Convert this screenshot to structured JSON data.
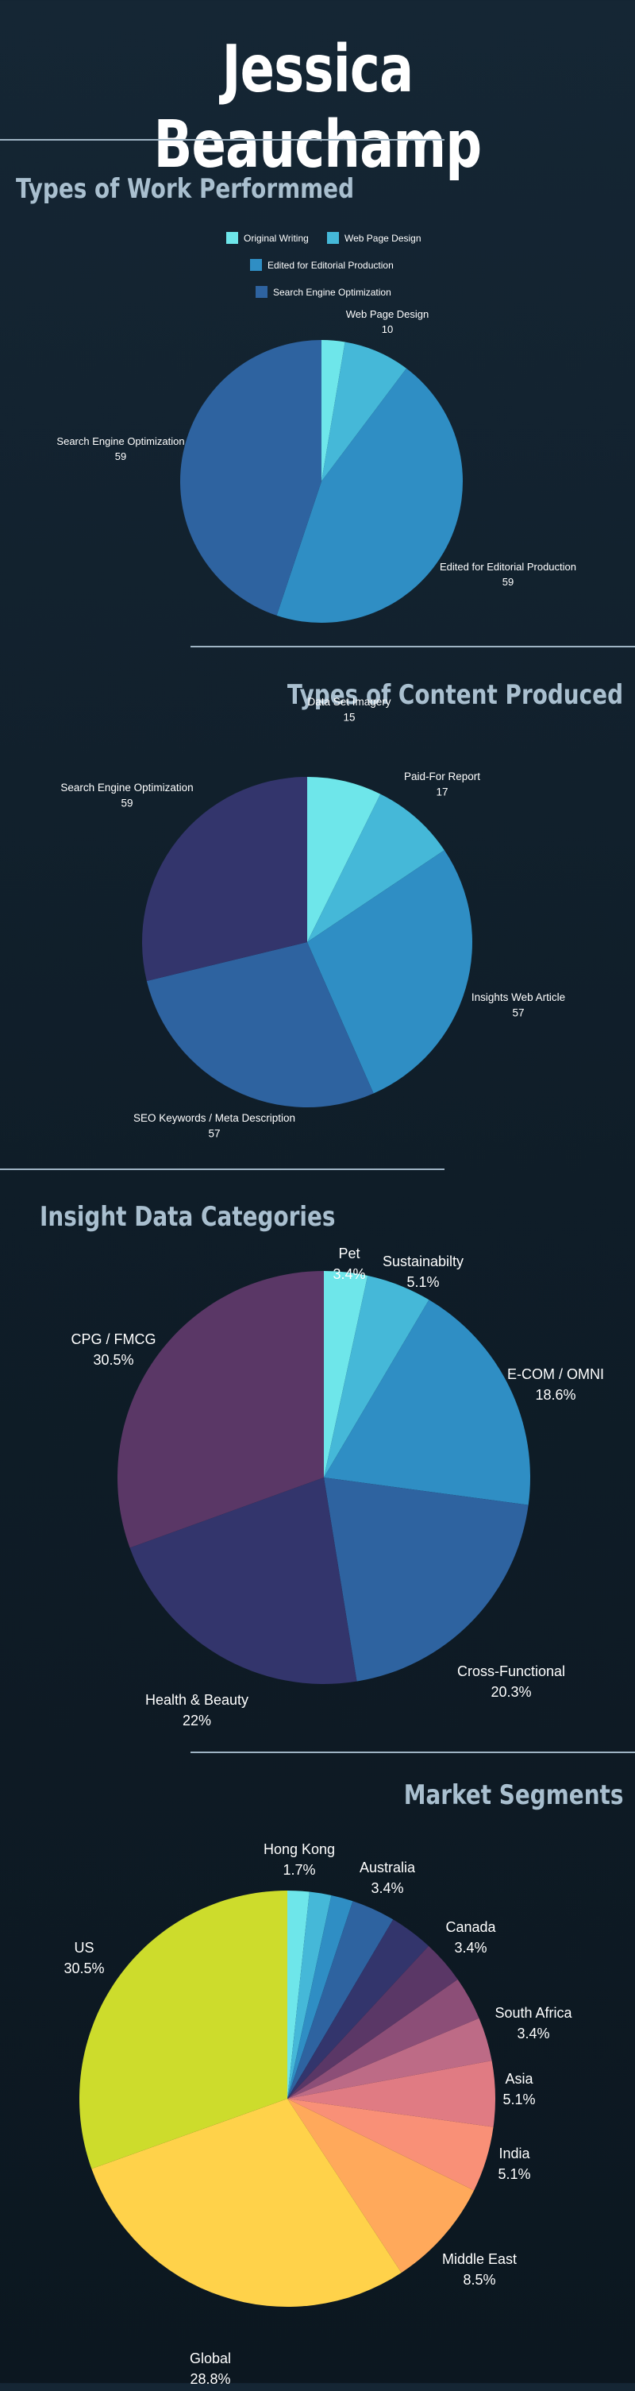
{
  "header": {
    "name": "Jessica Beauchamp"
  },
  "chart_data": [
    {
      "type": "pie",
      "title": "Types of Work Performmed",
      "legend": "top",
      "slices": [
        {
          "label": "Original Writing",
          "value": 3.5,
          "color": "#6ee6ea",
          "value_label": ""
        },
        {
          "label": "Web Page Design",
          "value": 10,
          "color": "#45b8d8",
          "value_label": "10"
        },
        {
          "label": "Edited for Editorial Production",
          "value": 59,
          "color": "#2f8ec4",
          "value_label": "59"
        },
        {
          "label": "Search Engine Optimization",
          "value": 59,
          "color": "#2e63a0",
          "value_label": "59"
        }
      ]
    },
    {
      "type": "pie",
      "title": "Types of Content Produced",
      "slices": [
        {
          "label": "Data Set Imagery",
          "value": 15,
          "color": "#6ee6ea",
          "value_label": "15"
        },
        {
          "label": "Paid-For Report",
          "value": 17,
          "color": "#45b8d8",
          "value_label": "17"
        },
        {
          "label": "Insights Web Article",
          "value": 57,
          "color": "#2f8ec4",
          "value_label": "57"
        },
        {
          "label": "SEO Keywords / Meta Description",
          "value": 57,
          "color": "#2e63a0",
          "value_label": "57"
        },
        {
          "label": "Search Engine Optimization",
          "value": 59,
          "color": "#33356c",
          "value_label": "59"
        }
      ]
    },
    {
      "type": "pie",
      "title": "Insight Data Categories",
      "slices": [
        {
          "label": "Pet",
          "value": 3.4,
          "color": "#6ee6ea",
          "value_label": "3.4%"
        },
        {
          "label": "Sustainabilty",
          "value": 5.1,
          "color": "#45b8d8",
          "value_label": "5.1%"
        },
        {
          "label": "E-COM / OMNI",
          "value": 18.6,
          "color": "#2f8ec4",
          "value_label": "18.6%"
        },
        {
          "label": "Cross-Functional",
          "value": 20.3,
          "color": "#2e63a0",
          "value_label": "20.3%"
        },
        {
          "label": "Health & Beauty",
          "value": 22,
          "color": "#33356c",
          "value_label": "22%"
        },
        {
          "label": "CPG / FMCG",
          "value": 30.5,
          "color": "#5a3766",
          "value_label": "30.5%"
        }
      ]
    },
    {
      "type": "pie",
      "title": "Market Segments",
      "slices": [
        {
          "label": "",
          "value": 1.7,
          "color": "#6ee6ea",
          "value_label": ""
        },
        {
          "label": "Hong Kong",
          "value": 1.7,
          "color": "#45b8d8",
          "value_label": "1.7%"
        },
        {
          "label": "",
          "value": 1.7,
          "color": "#2f8ec4",
          "value_label": ""
        },
        {
          "label": "Australia",
          "value": 3.4,
          "color": "#2e63a0",
          "value_label": "3.4%"
        },
        {
          "label": "",
          "value": 3.4,
          "color": "#33356c",
          "value_label": ""
        },
        {
          "label": "Canada",
          "value": 3.4,
          "color": "#5a3766",
          "value_label": "3.4%"
        },
        {
          "label": "",
          "value": 3.4,
          "color": "#8c4e77",
          "value_label": ""
        },
        {
          "label": "South Africa",
          "value": 3.4,
          "color": "#bd6b86",
          "value_label": "3.4%"
        },
        {
          "label": "Asia",
          "value": 5.1,
          "color": "#e07b83",
          "value_label": "5.1%"
        },
        {
          "label": "India",
          "value": 5.1,
          "color": "#f99077",
          "value_label": "5.1%"
        },
        {
          "label": "Middle East",
          "value": 8.5,
          "color": "#ffa95b",
          "value_label": "8.5%"
        },
        {
          "label": "Global",
          "value": 28.8,
          "color": "#ffd24a",
          "value_label": "28.8%"
        },
        {
          "label": "US",
          "value": 30.5,
          "color": "#cddc2c",
          "value_label": "30.5%"
        }
      ]
    }
  ]
}
